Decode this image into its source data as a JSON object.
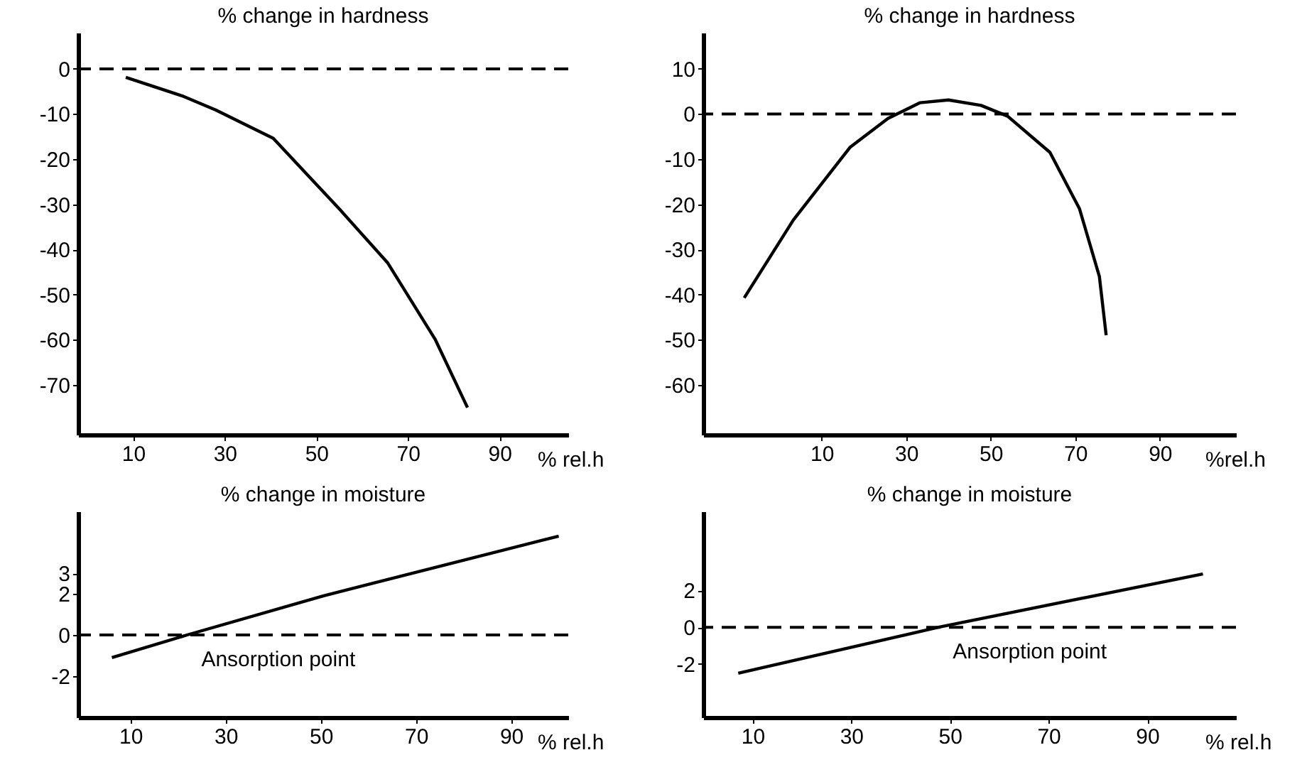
{
  "chart_data": [
    {
      "type": "line",
      "title": "% change in hardness",
      "xlabel": "% rel.h",
      "x": [
        8.4,
        21,
        28,
        40.6,
        55,
        65.6,
        76,
        83
      ],
      "series": [
        {
          "color": "#000000",
          "values": [
            -1.9,
            -6.1,
            -9.1,
            -15.4,
            -31,
            -43,
            -60,
            -75
          ]
        }
      ],
      "xlim": [
        -2,
        105
      ],
      "ylim": [
        -81,
        8
      ],
      "xticks": [
        10,
        30,
        50,
        70,
        90
      ],
      "yticks": [
        0,
        -10,
        -20,
        -30,
        -40,
        -50,
        -60,
        -70
      ],
      "ref_lines": [
        {
          "axis": "y",
          "value": 0,
          "line_style": "dashed"
        }
      ],
      "grid": false,
      "line_style": "solid"
    },
    {
      "type": "line",
      "title": "% change in hardness",
      "xlabel": "%rel.h",
      "x": [
        -8.3,
        3.3,
        16.7,
        25.7,
        33.3,
        40,
        47.7,
        54,
        64,
        71,
        75.7,
        77.3
      ],
      "series": [
        {
          "color": "#000000",
          "values": [
            -40.7,
            -23.5,
            -7.4,
            -1,
            2.5,
            3.1,
            1.9,
            -0.5,
            -8.5,
            -21,
            -36,
            -49
          ]
        }
      ],
      "xlim": [
        -18,
        108
      ],
      "ylim": [
        -71,
        18
      ],
      "xticks": [
        10,
        30,
        50,
        70,
        90
      ],
      "yticks": [
        10,
        0,
        -10,
        -20,
        -30,
        -40,
        -50,
        -60
      ],
      "ref_lines": [
        {
          "axis": "y",
          "value": 0,
          "line_style": "dashed"
        }
      ],
      "grid": false,
      "line_style": "solid"
    },
    {
      "type": "line",
      "title": "% change in moisture",
      "xlabel": "% rel.h",
      "x": [
        6.1,
        21.9,
        50.6,
        100
      ],
      "series": [
        {
          "color": "#000000",
          "values": [
            -1.1,
            0,
            1.9,
            4.8
          ]
        }
      ],
      "xlim": [
        -1,
        102
      ],
      "ylim": [
        -4,
        6
      ],
      "xticks": [
        10,
        30,
        50,
        70,
        90
      ],
      "yticks": [
        3,
        2,
        0,
        -2
      ],
      "ref_lines": [
        {
          "axis": "y",
          "value": 0,
          "line_style": "dashed"
        }
      ],
      "annotations": [
        {
          "text": "Ansorption point",
          "x": 21.9,
          "y": 0
        }
      ],
      "grid": false,
      "line_style": "solid"
    },
    {
      "type": "line",
      "title": "% change in moisture",
      "xlabel": "% rel.h",
      "x": [
        7.1,
        47.7,
        101.3
      ],
      "series": [
        {
          "color": "#000000",
          "values": [
            -2.5,
            0,
            2.9
          ]
        }
      ],
      "xlim": [
        0,
        108
      ],
      "ylim": [
        -4.9,
        6.3
      ],
      "xticks": [
        10,
        30,
        50,
        70,
        90
      ],
      "yticks": [
        2,
        0,
        -2
      ],
      "ref_lines": [
        {
          "axis": "y",
          "value": 0,
          "line_style": "dashed"
        }
      ],
      "annotations": [
        {
          "text": "Ansorption point",
          "x": 47.7,
          "y": 0
        }
      ],
      "grid": false,
      "line_style": "solid"
    }
  ]
}
